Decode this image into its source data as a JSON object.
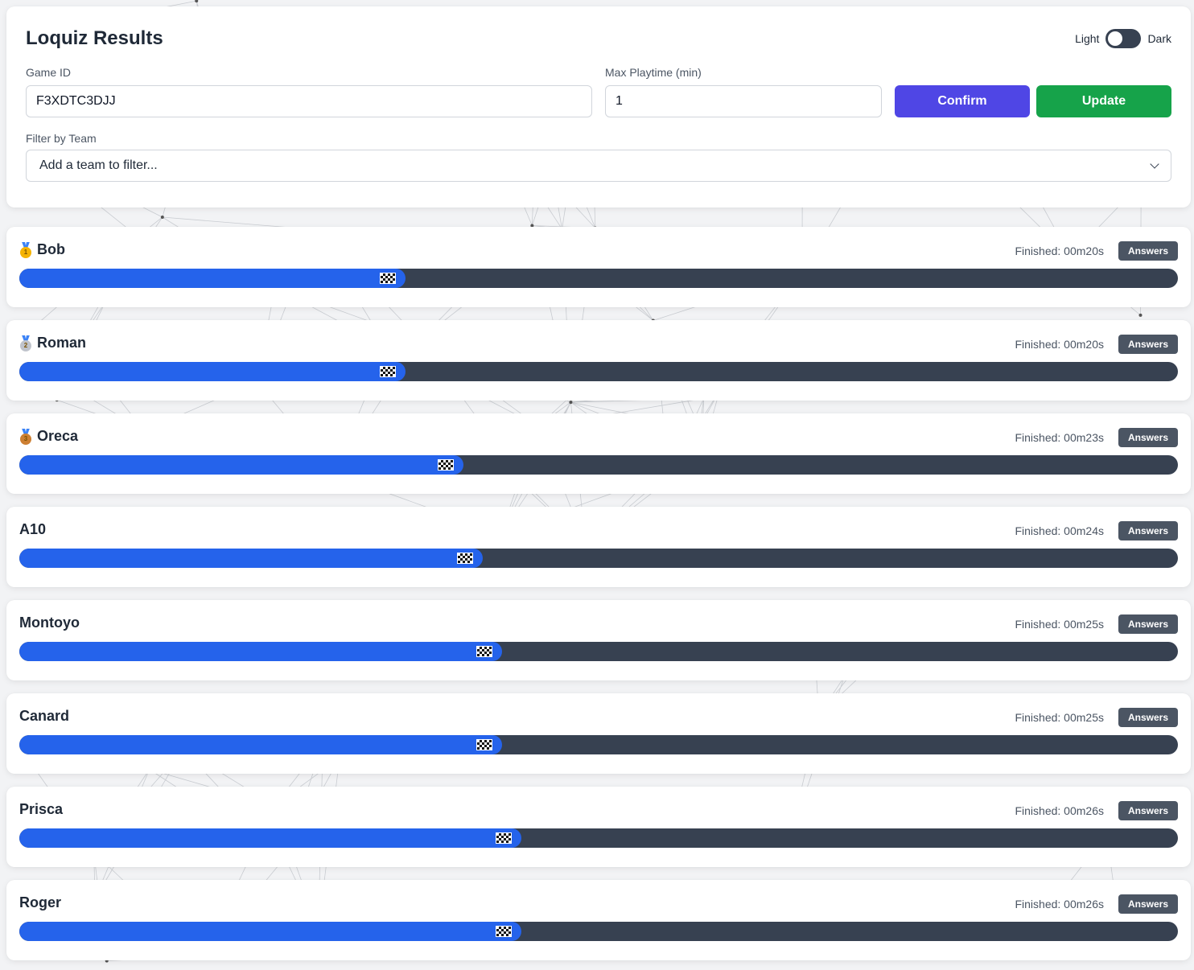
{
  "header": {
    "title": "Loquiz Results",
    "theme_light_label": "Light",
    "theme_dark_label": "Dark"
  },
  "form": {
    "game_id_label": "Game ID",
    "game_id_value": "F3XDTC3DJJ",
    "max_playtime_label": "Max Playtime (min)",
    "max_playtime_value": "1",
    "confirm_label": "Confirm",
    "update_label": "Update",
    "filter_label": "Filter by Team",
    "filter_placeholder": "Add a team to filter..."
  },
  "colors": {
    "confirm": "#4f46e5",
    "update": "#16a34a",
    "progress_fill": "#2563eb",
    "progress_track": "#374151"
  },
  "answers_label": "Answers",
  "teams": [
    {
      "name": "Bob",
      "medal": "gold-medal-icon",
      "medal_number": "1",
      "finished": "Finished: 00m20s",
      "progress": 0.333
    },
    {
      "name": "Roman",
      "medal": "silver-medal-icon",
      "medal_number": "2",
      "finished": "Finished: 00m20s",
      "progress": 0.333
    },
    {
      "name": "Oreca",
      "medal": "bronze-medal-icon",
      "medal_number": "3",
      "finished": "Finished: 00m23s",
      "progress": 0.383
    },
    {
      "name": "A10",
      "medal": null,
      "medal_number": "",
      "finished": "Finished: 00m24s",
      "progress": 0.4
    },
    {
      "name": "Montoyo",
      "medal": null,
      "medal_number": "",
      "finished": "Finished: 00m25s",
      "progress": 0.417
    },
    {
      "name": "Canard",
      "medal": null,
      "medal_number": "",
      "finished": "Finished: 00m25s",
      "progress": 0.417
    },
    {
      "name": "Prisca",
      "medal": null,
      "medal_number": "",
      "finished": "Finished: 00m26s",
      "progress": 0.433
    },
    {
      "name": "Roger",
      "medal": null,
      "medal_number": "",
      "finished": "Finished: 00m26s",
      "progress": 0.433
    }
  ]
}
